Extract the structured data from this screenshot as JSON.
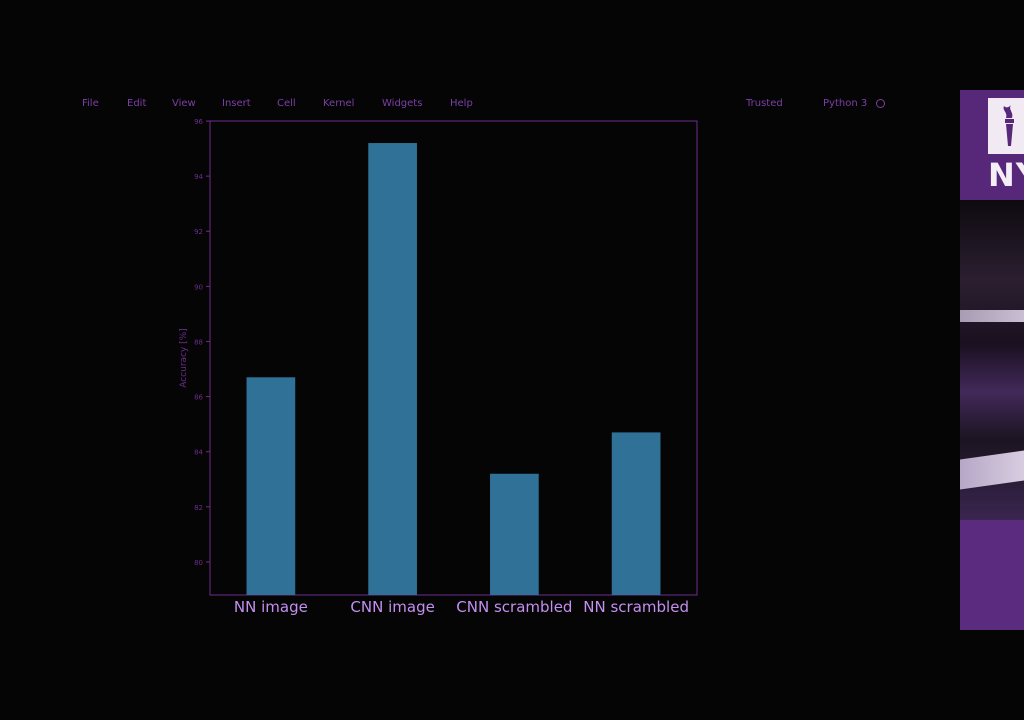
{
  "menu": {
    "items": [
      "File",
      "Edit",
      "View",
      "Insert",
      "Cell",
      "Kernel",
      "Widgets",
      "Help"
    ],
    "trusted": "Trusted",
    "kernel": "Python 3"
  },
  "colors": {
    "background": "#060505",
    "menu_text": "#7b3fa8",
    "bar": "#2f7197",
    "axis": "#6a2d8e",
    "category_label": "#c38ff0",
    "brand_purple": "#57287a"
  },
  "logo": {
    "text": "NY"
  },
  "chart_data": {
    "type": "bar",
    "ylabel": "Accuracy [%]",
    "categories": [
      "NN image",
      "CNN image",
      "CNN scrambled",
      "NN scrambled"
    ],
    "values": [
      86.7,
      95.2,
      83.2,
      84.7
    ],
    "ylim": [
      78.8,
      96
    ],
    "yticks": [
      80,
      82,
      84,
      86,
      88,
      90,
      92,
      94,
      96
    ],
    "grid": false
  }
}
